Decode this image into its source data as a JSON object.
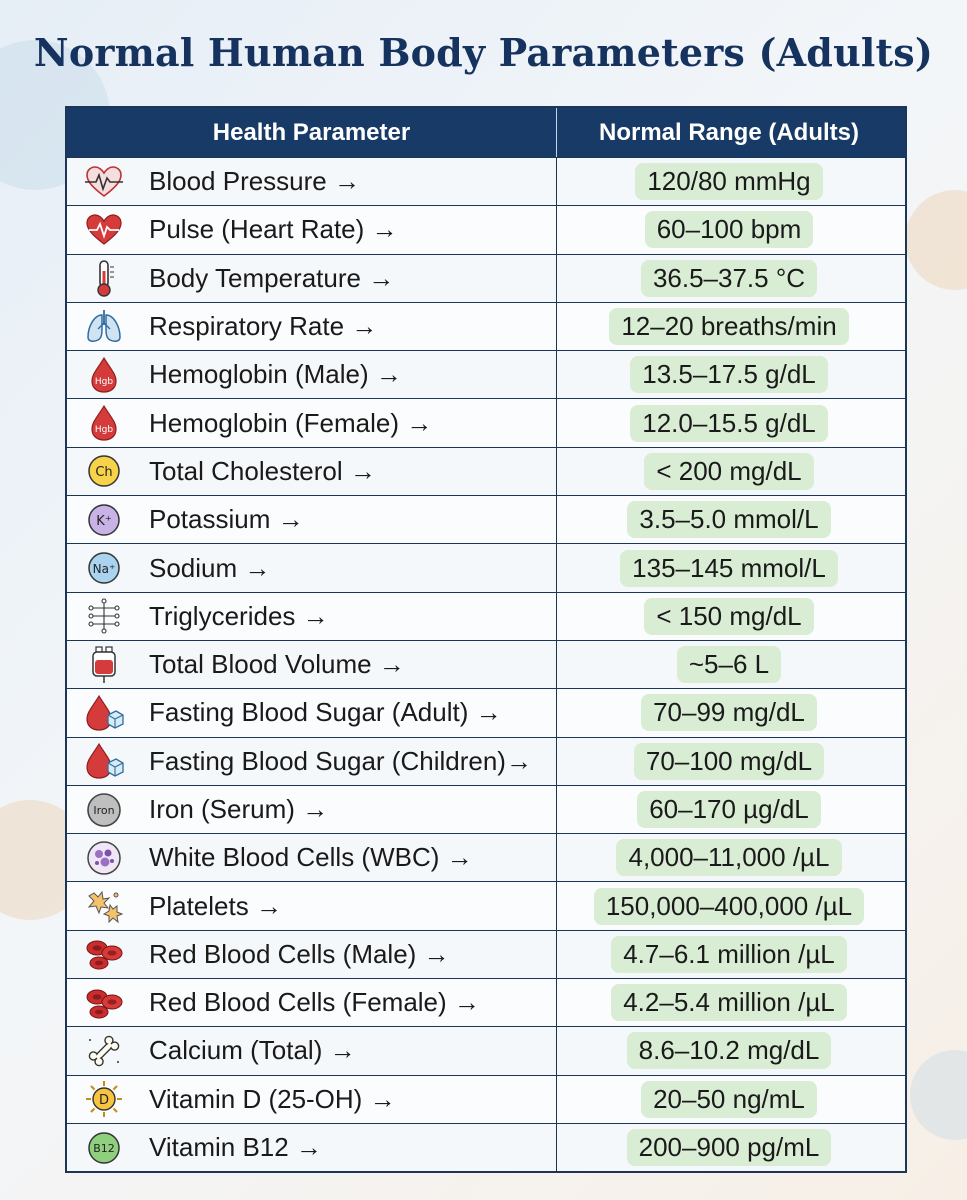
{
  "title": "Normal Human Body Parameters (Adults)",
  "table": {
    "headers": [
      "Health Parameter",
      "Normal Range (Adults)"
    ],
    "rows": [
      {
        "icon": "heart-pulse-outline-icon",
        "parameter": "Blood Pressure →",
        "range": "120/80 mmHg"
      },
      {
        "icon": "heart-pulse-icon",
        "parameter": "Pulse (Heart Rate) →",
        "range": "60–100 bpm"
      },
      {
        "icon": "thermometer-icon",
        "parameter": "Body Temperature →",
        "range": "36.5–37.5 °C"
      },
      {
        "icon": "lungs-icon",
        "parameter": "Respiratory Rate →",
        "range": "12–20 breaths/min"
      },
      {
        "icon": "blood-drop-hgb-icon",
        "parameter": "Hemoglobin (Male) →",
        "range": "13.5–17.5 g/dL"
      },
      {
        "icon": "blood-drop-hgb-icon",
        "parameter": "Hemoglobin (Female) →",
        "range": "12.0–15.5 g/dL"
      },
      {
        "icon": "cholesterol-ch-icon",
        "parameter": "Total Cholesterol →",
        "range": "< 200 mg/dL"
      },
      {
        "icon": "potassium-k-icon",
        "parameter": "Potassium →",
        "range": "3.5–5.0 mmol/L"
      },
      {
        "icon": "sodium-na-icon",
        "parameter": "Sodium →",
        "range": "135–145 mmol/L"
      },
      {
        "icon": "molecule-structure-icon",
        "parameter": "Triglycerides →",
        "range": "< 150 mg/dL"
      },
      {
        "icon": "blood-bag-icon",
        "parameter": "Total Blood Volume →",
        "range": "~5–6 L"
      },
      {
        "icon": "blood-drop-sugar-cube-icon",
        "parameter": "Fasting Blood Sugar (Adult) →",
        "range": "70–99 mg/dL"
      },
      {
        "icon": "blood-drop-sugar-cube-icon",
        "parameter": "Fasting Blood Sugar (Children)→",
        "range": "70–100 mg/dL"
      },
      {
        "icon": "iron-badge-icon",
        "parameter": "Iron (Serum) →",
        "range": "60–170 µg/dL"
      },
      {
        "icon": "white-blood-cell-icon",
        "parameter": "White Blood Cells (WBC) →",
        "range": "4,000–11,000 /µL"
      },
      {
        "icon": "platelets-icon",
        "parameter": "Platelets →",
        "range": "150,000–400,000 /µL"
      },
      {
        "icon": "red-blood-cells-icon",
        "parameter": "Red Blood Cells (Male) →",
        "range": "4.7–6.1 million /µL"
      },
      {
        "icon": "red-blood-cells-icon",
        "parameter": "Red Blood Cells (Female) →",
        "range": "4.2–5.4 million /µL"
      },
      {
        "icon": "bone-icon",
        "parameter": "Calcium (Total) →",
        "range": "8.6–10.2 mg/dL"
      },
      {
        "icon": "vitamin-d-sun-icon",
        "parameter": "Vitamin D (25-OH) →",
        "range": "20–50 ng/mL"
      },
      {
        "icon": "vitamin-b12-icon",
        "parameter": "Vitamin B12 →",
        "range": "200–900 pg/mL"
      }
    ]
  },
  "icon_text": {
    "hgb": "Hgb",
    "ch": "Ch",
    "k": "K⁺",
    "na": "Na⁺",
    "iron": "Iron",
    "d": "D",
    "b12": "B12"
  },
  "colors": {
    "title": "#15335e",
    "header_bg": "#183a66",
    "range_pill": "#d9ecd4",
    "heart_red": "#d63b3b"
  }
}
